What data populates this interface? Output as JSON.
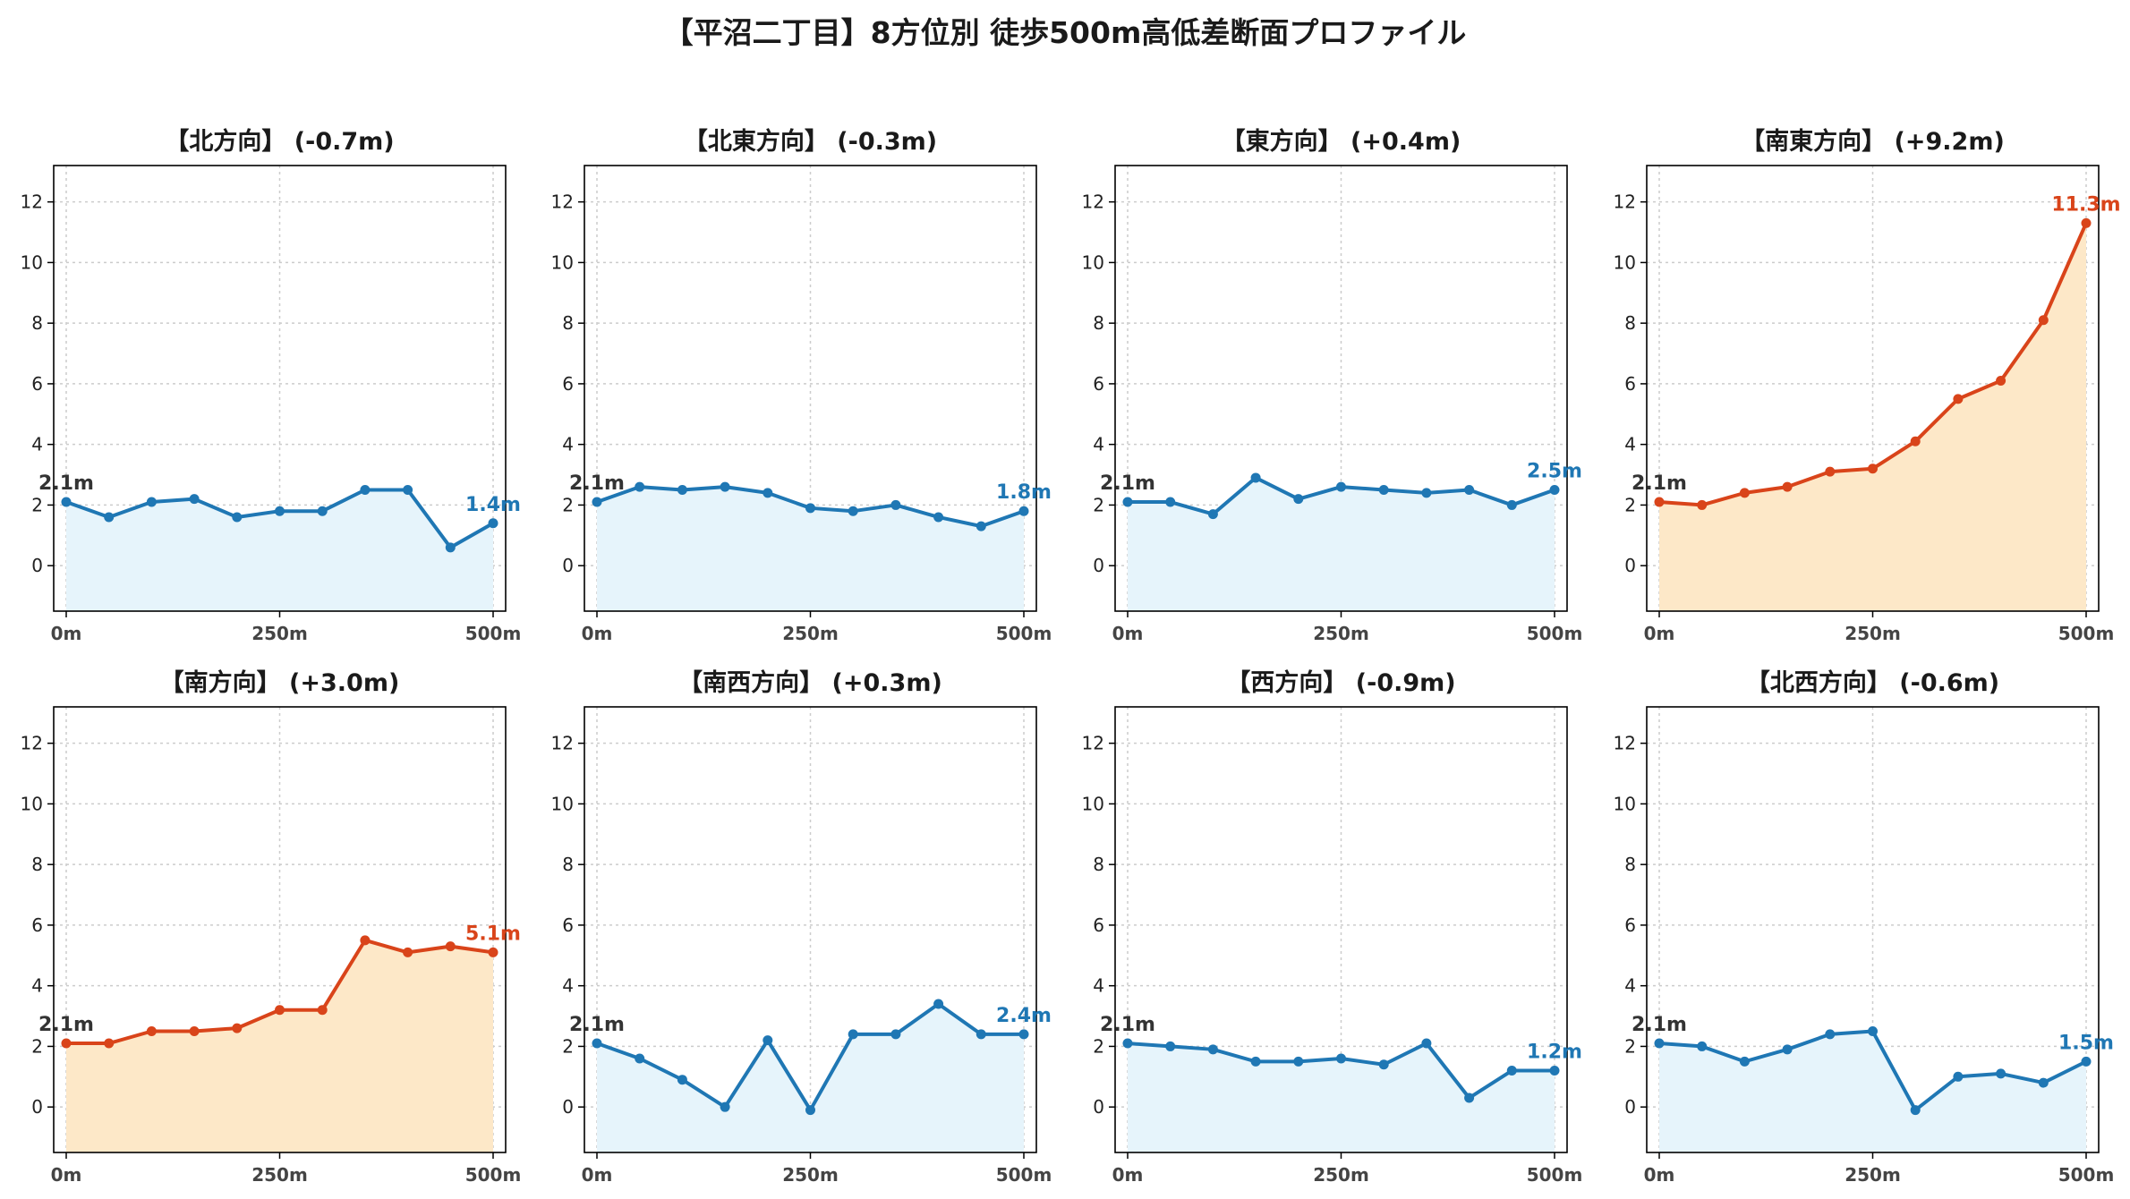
{
  "suptitle": "【平沼二丁目】8方位別 徒歩500m高低差断面プロファイル",
  "colors": {
    "flat_line": "#1f77b4",
    "flat_fill": "#e6f4fb",
    "uphill_line": "#d9441a",
    "uphill_fill": "#fde8c8",
    "start_label": "#333333",
    "grid": "#cccccc",
    "axis": "#000000"
  },
  "chart_data": [
    {
      "type": "area",
      "title": "【北方向】 (-0.7m)",
      "x": [
        0,
        50,
        100,
        150,
        200,
        250,
        300,
        350,
        400,
        450,
        500
      ],
      "values": [
        2.1,
        1.6,
        2.1,
        2.2,
        1.6,
        1.8,
        1.8,
        2.5,
        2.5,
        0.6,
        1.4
      ],
      "start_label": "2.1m",
      "end_label": "1.4m",
      "trend": "flat",
      "x_ticks": [
        "0m",
        "250m",
        "500m"
      ],
      "y_ticks": [
        "0",
        "2",
        "4",
        "6",
        "8",
        "10",
        "12"
      ],
      "ylim": [
        -1.5,
        13.2
      ],
      "grid": true
    },
    {
      "type": "area",
      "title": "【北東方向】 (-0.3m)",
      "x": [
        0,
        50,
        100,
        150,
        200,
        250,
        300,
        350,
        400,
        450,
        500
      ],
      "values": [
        2.1,
        2.6,
        2.5,
        2.6,
        2.4,
        1.9,
        1.8,
        2.0,
        1.6,
        1.3,
        1.8
      ],
      "start_label": "2.1m",
      "end_label": "1.8m",
      "trend": "flat",
      "x_ticks": [
        "0m",
        "250m",
        "500m"
      ],
      "y_ticks": [
        "0",
        "2",
        "4",
        "6",
        "8",
        "10",
        "12"
      ],
      "ylim": [
        -1.5,
        13.2
      ],
      "grid": true
    },
    {
      "type": "area",
      "title": "【東方向】 (+0.4m)",
      "x": [
        0,
        50,
        100,
        150,
        200,
        250,
        300,
        350,
        400,
        450,
        500
      ],
      "values": [
        2.1,
        2.1,
        1.7,
        2.9,
        2.2,
        2.6,
        2.5,
        2.4,
        2.5,
        2.0,
        2.5
      ],
      "start_label": "2.1m",
      "end_label": "2.5m",
      "trend": "flat",
      "x_ticks": [
        "0m",
        "250m",
        "500m"
      ],
      "y_ticks": [
        "0",
        "2",
        "4",
        "6",
        "8",
        "10",
        "12"
      ],
      "ylim": [
        -1.5,
        13.2
      ],
      "grid": true
    },
    {
      "type": "area",
      "title": "【南東方向】 (+9.2m)",
      "x": [
        0,
        50,
        100,
        150,
        200,
        250,
        300,
        350,
        400,
        450,
        500
      ],
      "values": [
        2.1,
        2.0,
        2.4,
        2.6,
        3.1,
        3.2,
        4.1,
        5.5,
        6.1,
        8.1,
        11.3
      ],
      "start_label": "2.1m",
      "end_label": "11.3m",
      "trend": "uphill",
      "x_ticks": [
        "0m",
        "250m",
        "500m"
      ],
      "y_ticks": [
        "0",
        "2",
        "4",
        "6",
        "8",
        "10",
        "12"
      ],
      "ylim": [
        -1.5,
        13.2
      ],
      "grid": true
    },
    {
      "type": "area",
      "title": "【南方向】 (+3.0m)",
      "x": [
        0,
        50,
        100,
        150,
        200,
        250,
        300,
        350,
        400,
        450,
        500
      ],
      "values": [
        2.1,
        2.1,
        2.5,
        2.5,
        2.6,
        3.2,
        3.2,
        5.5,
        5.1,
        5.3,
        5.1
      ],
      "start_label": "2.1m",
      "end_label": "5.1m",
      "trend": "uphill",
      "x_ticks": [
        "0m",
        "250m",
        "500m"
      ],
      "y_ticks": [
        "0",
        "2",
        "4",
        "6",
        "8",
        "10",
        "12"
      ],
      "ylim": [
        -1.5,
        13.2
      ],
      "grid": true
    },
    {
      "type": "area",
      "title": "【南西方向】 (+0.3m)",
      "x": [
        0,
        50,
        100,
        150,
        200,
        250,
        300,
        350,
        400,
        450,
        500
      ],
      "values": [
        2.1,
        1.6,
        0.9,
        0.0,
        2.2,
        -0.1,
        2.4,
        2.4,
        3.4,
        2.4,
        2.4
      ],
      "start_label": "2.1m",
      "end_label": "2.4m",
      "trend": "flat",
      "x_ticks": [
        "0m",
        "250m",
        "500m"
      ],
      "y_ticks": [
        "0",
        "2",
        "4",
        "6",
        "8",
        "10",
        "12"
      ],
      "ylim": [
        -1.5,
        13.2
      ],
      "grid": true
    },
    {
      "type": "area",
      "title": "【西方向】 (-0.9m)",
      "x": [
        0,
        50,
        100,
        150,
        200,
        250,
        300,
        350,
        400,
        450,
        500
      ],
      "values": [
        2.1,
        2.0,
        1.9,
        1.5,
        1.5,
        1.6,
        1.4,
        2.1,
        0.3,
        1.2,
        1.2
      ],
      "start_label": "2.1m",
      "end_label": "1.2m",
      "trend": "flat",
      "x_ticks": [
        "0m",
        "250m",
        "500m"
      ],
      "y_ticks": [
        "0",
        "2",
        "4",
        "6",
        "8",
        "10",
        "12"
      ],
      "ylim": [
        -1.5,
        13.2
      ],
      "grid": true
    },
    {
      "type": "area",
      "title": "【北西方向】 (-0.6m)",
      "x": [
        0,
        50,
        100,
        150,
        200,
        250,
        300,
        350,
        400,
        450,
        500
      ],
      "values": [
        2.1,
        2.0,
        1.5,
        1.9,
        2.4,
        2.5,
        -0.1,
        1.0,
        1.1,
        0.8,
        1.5
      ],
      "start_label": "2.1m",
      "end_label": "1.5m",
      "trend": "flat",
      "x_ticks": [
        "0m",
        "250m",
        "500m"
      ],
      "y_ticks": [
        "0",
        "2",
        "4",
        "6",
        "8",
        "10",
        "12"
      ],
      "ylim": [
        -1.5,
        13.2
      ],
      "grid": true
    }
  ]
}
